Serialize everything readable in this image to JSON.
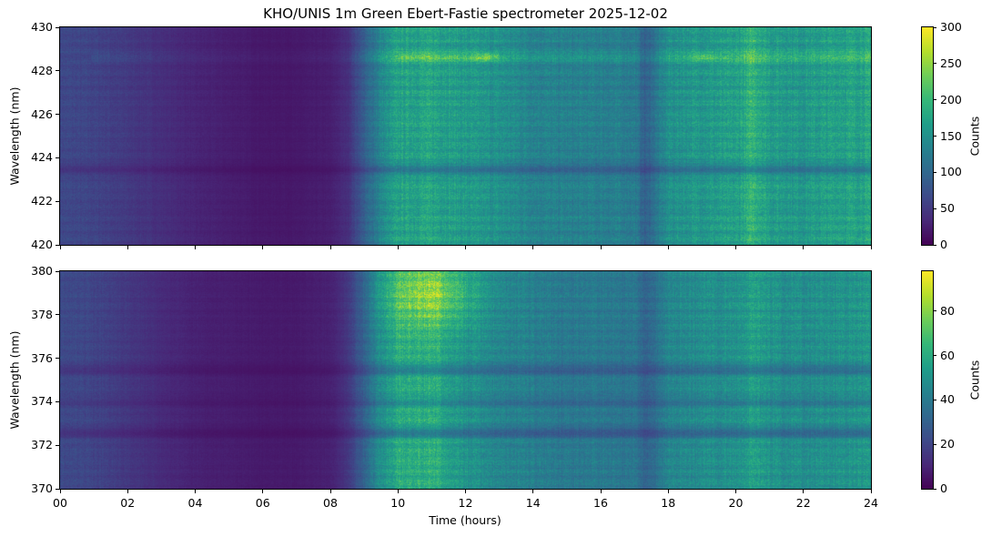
{
  "title": "KHO/UNIS 1m Green Ebert-Fastie spectrometer 2025-12-02",
  "chart_data": [
    {
      "type": "heatmap",
      "panel": "top",
      "ylabel": "Wavelength (nm)",
      "ylim": [
        420,
        430
      ],
      "yticks": [
        "420",
        "422",
        "424",
        "426",
        "428",
        "430"
      ],
      "xlim": [
        0,
        24
      ],
      "colorbar": {
        "label": "Counts",
        "range": [
          0,
          300
        ],
        "ticks": [
          "0",
          "50",
          "100",
          "150",
          "200",
          "250",
          "300"
        ]
      },
      "time_hours": [
        0,
        1,
        2,
        3,
        4,
        5,
        6,
        7,
        8,
        8.5,
        9,
        9.5,
        10,
        11,
        12,
        13,
        14,
        15,
        16,
        17,
        17.3,
        18,
        19,
        20,
        20.5,
        21,
        22,
        23,
        24
      ],
      "mean_counts": [
        65,
        60,
        50,
        40,
        30,
        25,
        20,
        20,
        25,
        40,
        90,
        140,
        170,
        175,
        160,
        150,
        135,
        130,
        130,
        125,
        90,
        150,
        160,
        165,
        195,
        165,
        160,
        170,
        175
      ],
      "wavelength_features": [
        {
          "nm": 428.65,
          "kind": "emission",
          "factor": 1.45
        },
        {
          "nm": 423.5,
          "kind": "absorption",
          "factor": 0.7
        }
      ]
    },
    {
      "type": "heatmap",
      "panel": "bottom",
      "ylabel": "Wavelength (nm)",
      "ylim": [
        370,
        380
      ],
      "yticks": [
        "370",
        "372",
        "374",
        "376",
        "378",
        "380"
      ],
      "xlim": [
        0,
        24
      ],
      "xlabel": "Time (hours)",
      "xticks": [
        "00",
        "02",
        "04",
        "06",
        "08",
        "10",
        "12",
        "14",
        "16",
        "18",
        "20",
        "22",
        "24"
      ],
      "colorbar": {
        "label": "Counts",
        "range": [
          0,
          98
        ],
        "ticks": [
          "0",
          "20",
          "40",
          "60",
          "80"
        ]
      },
      "time_hours": [
        0,
        1,
        2,
        3,
        4,
        5,
        6,
        7,
        8,
        8.5,
        9,
        9.5,
        10,
        11,
        12,
        13,
        14,
        15,
        16,
        17,
        17.3,
        18,
        19,
        20,
        20.5,
        21,
        22,
        23,
        24
      ],
      "mean_counts": [
        22,
        20,
        16,
        12,
        9,
        8,
        7,
        7,
        9,
        15,
        32,
        50,
        60,
        62,
        50,
        45,
        42,
        40,
        40,
        38,
        30,
        45,
        48,
        50,
        56,
        50,
        48,
        50,
        52
      ],
      "wavelength_features": [
        {
          "nm": 372.6,
          "kind": "absorption",
          "factor": 0.65
        },
        {
          "nm": 375.5,
          "kind": "absorption",
          "factor": 0.7
        },
        {
          "nm": 374.0,
          "kind": "absorption",
          "factor": 0.8
        },
        {
          "nm": 379.0,
          "kind": "enhancement",
          "factor": 1.35
        }
      ]
    }
  ]
}
